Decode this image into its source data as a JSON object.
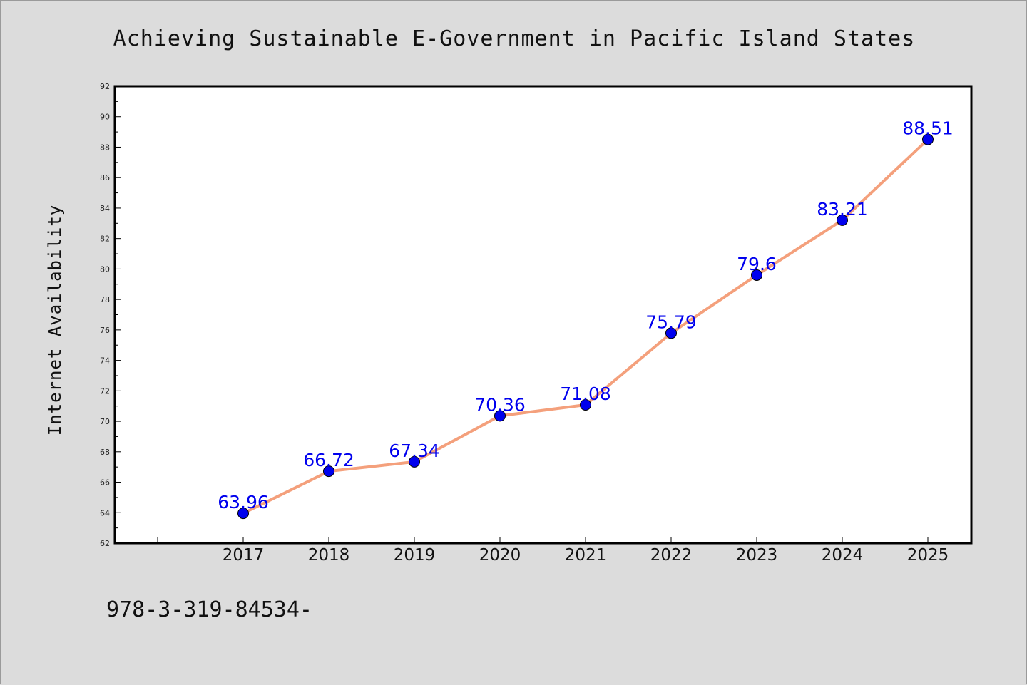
{
  "chart_data": {
    "type": "line",
    "title": "Achieving Sustainable E-Government in Pacific Island States",
    "xlabel": "",
    "ylabel": "Internet Availability",
    "categories": [
      "2017",
      "2018",
      "2019",
      "2020",
      "2021",
      "2022",
      "2023",
      "2024",
      "2025"
    ],
    "series": [
      {
        "values": [
          63.96,
          66.72,
          67.34,
          70.36,
          71.08,
          75.79,
          79.6,
          83.21,
          88.51
        ],
        "labels": [
          "63.96",
          "66.72",
          "67.34",
          "70.36",
          "71.08",
          "75.79",
          "79.6",
          "83.21",
          "88.51"
        ],
        "line_color": "#f4a07c",
        "marker_color": "#0000ee"
      }
    ],
    "ylim": [
      62,
      92
    ],
    "yticks": [
      "62",
      "64",
      "66",
      "68",
      "70",
      "72",
      "74",
      "76",
      "78",
      "80",
      "82",
      "84",
      "86",
      "88",
      "90",
      "92"
    ],
    "grid": false,
    "legend": "none"
  },
  "footer": {
    "text": "978-3-319-84534-"
  },
  "colors": {
    "page_background": "#dcdcdc",
    "plot_background": "#ffffff",
    "axis": "#000000"
  }
}
